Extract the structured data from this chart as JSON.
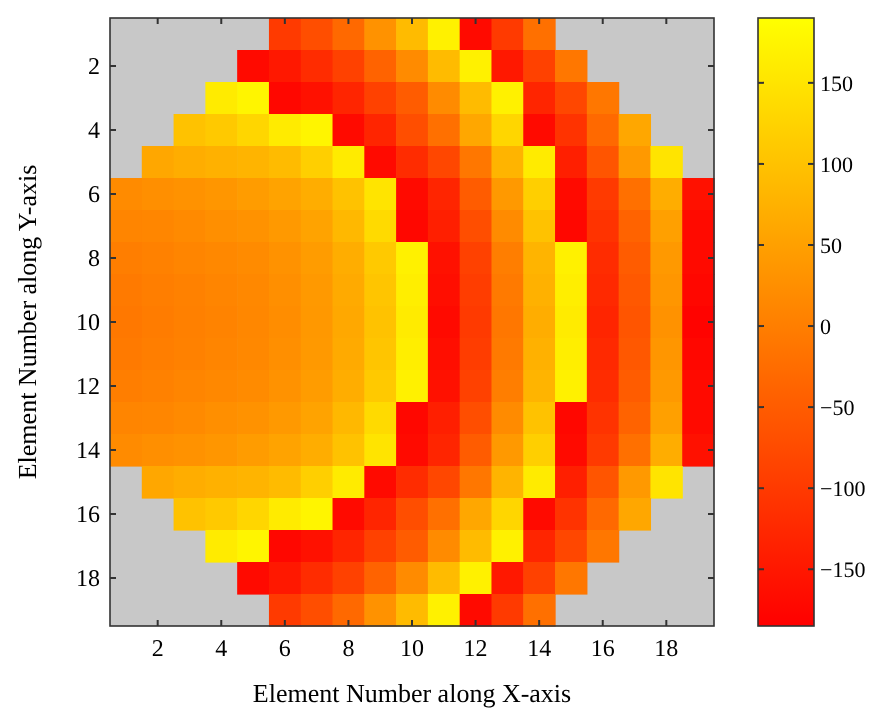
{
  "chart_data": {
    "type": "heatmap",
    "xlabel": "Element Number along X-axis",
    "ylabel": "Element Number along Y-axis",
    "categories": [
      null,
      "2",
      null,
      "4",
      null,
      "6",
      null,
      "8",
      null,
      "10",
      null,
      "12",
      null,
      "14",
      null,
      "16",
      null,
      "18",
      null
    ],
    "y_categories": [
      null,
      "2",
      null,
      "4",
      null,
      "6",
      null,
      "8",
      null,
      "10",
      null,
      "12",
      null,
      "14",
      null,
      "16",
      null,
      "18",
      null
    ],
    "clim": [
      -185,
      190
    ],
    "cticks": [
      -150,
      -100,
      -50,
      0,
      50,
      100,
      150
    ],
    "cells": [
      [
        null,
        null,
        null,
        null,
        null,
        -100,
        -70,
        -30,
        30,
        90,
        170,
        -170,
        -100,
        -20,
        null,
        null,
        null,
        null,
        null
      ],
      [
        null,
        null,
        null,
        null,
        -170,
        -150,
        -120,
        -90,
        -40,
        20,
        90,
        170,
        -150,
        -90,
        -10,
        null,
        null,
        null,
        null
      ],
      [
        null,
        null,
        null,
        160,
        175,
        -175,
        -160,
        -130,
        -90,
        -50,
        20,
        90,
        170,
        -130,
        -80,
        -10,
        null,
        null,
        null
      ],
      [
        null,
        null,
        100,
        110,
        130,
        160,
        175,
        -170,
        -130,
        -70,
        -20,
        60,
        130,
        -170,
        -110,
        -30,
        60,
        null,
        null
      ],
      [
        null,
        60,
        70,
        75,
        80,
        90,
        120,
        160,
        -170,
        -120,
        -80,
        -10,
        80,
        160,
        -140,
        -60,
        40,
        150,
        null
      ],
      [
        20,
        25,
        30,
        35,
        45,
        55,
        70,
        100,
        150,
        -170,
        -130,
        -50,
        40,
        120,
        -170,
        -100,
        -20,
        70,
        -160
      ],
      [
        10,
        12,
        18,
        25,
        30,
        40,
        55,
        85,
        135,
        -175,
        -140,
        -70,
        20,
        100,
        -175,
        -110,
        -40,
        50,
        -170
      ],
      [
        0,
        5,
        10,
        15,
        20,
        30,
        45,
        70,
        110,
        170,
        -160,
        -90,
        0,
        80,
        170,
        -120,
        -50,
        40,
        -170
      ],
      [
        -5,
        0,
        5,
        10,
        15,
        25,
        40,
        65,
        105,
        165,
        -165,
        -95,
        -5,
        75,
        165,
        -125,
        -55,
        35,
        -175
      ],
      [
        -8,
        -3,
        3,
        8,
        13,
        22,
        38,
        62,
        100,
        160,
        -170,
        -100,
        -10,
        70,
        160,
        -130,
        -60,
        30,
        -180
      ],
      [
        -5,
        0,
        5,
        10,
        15,
        25,
        40,
        65,
        105,
        165,
        -165,
        -95,
        -5,
        75,
        165,
        -125,
        -55,
        35,
        -175
      ],
      [
        0,
        5,
        10,
        15,
        20,
        30,
        45,
        70,
        110,
        170,
        -160,
        -90,
        0,
        80,
        170,
        -120,
        -50,
        40,
        -170
      ],
      [
        10,
        12,
        18,
        25,
        30,
        40,
        55,
        85,
        135,
        -175,
        -140,
        -70,
        20,
        100,
        -175,
        -110,
        -40,
        50,
        -170
      ],
      [
        20,
        25,
        30,
        35,
        45,
        55,
        70,
        100,
        150,
        -170,
        -130,
        -50,
        40,
        120,
        -170,
        -100,
        -20,
        70,
        -160
      ],
      [
        null,
        60,
        70,
        75,
        80,
        90,
        120,
        160,
        -170,
        -120,
        -80,
        -10,
        80,
        160,
        -140,
        -60,
        40,
        150,
        null
      ],
      [
        null,
        null,
        100,
        110,
        130,
        160,
        175,
        -170,
        -130,
        -70,
        -20,
        60,
        130,
        -170,
        -110,
        -30,
        60,
        null,
        null
      ],
      [
        null,
        null,
        null,
        160,
        175,
        -175,
        -160,
        -130,
        -90,
        -50,
        20,
        90,
        170,
        -130,
        -80,
        -10,
        null,
        null,
        null
      ],
      [
        null,
        null,
        null,
        null,
        -170,
        -150,
        -120,
        -90,
        -40,
        20,
        90,
        170,
        -150,
        -90,
        -10,
        null,
        null,
        null,
        null
      ],
      [
        null,
        null,
        null,
        null,
        null,
        -100,
        -70,
        -30,
        30,
        90,
        170,
        -170,
        -100,
        -20,
        null,
        null,
        null,
        null,
        null
      ]
    ]
  }
}
